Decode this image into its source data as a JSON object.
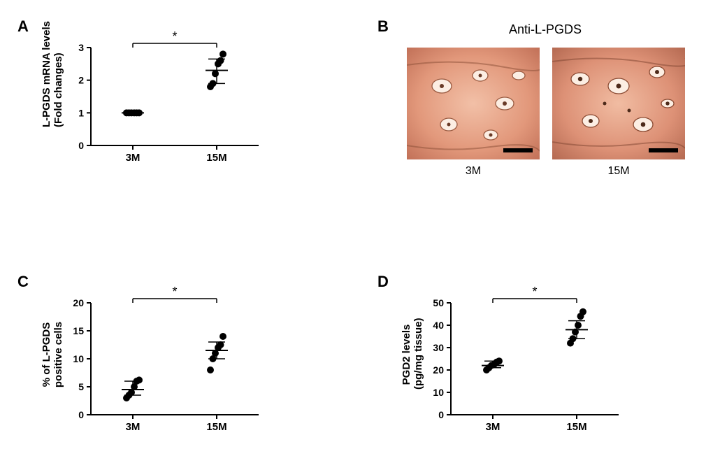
{
  "panels": {
    "A": {
      "label": "A",
      "type": "scatter",
      "ylabel_line1": "L-PGDS mRNA levels",
      "ylabel_line2": "(Fold changes)",
      "categories": [
        "3M",
        "15M"
      ],
      "ylim": [
        0,
        3
      ],
      "ytick_step": 1,
      "yticks": [
        0,
        1,
        2,
        3
      ],
      "sig_marker": "*",
      "sig_bracket": true,
      "marker_color": "#000000",
      "marker_size": 5,
      "axis_color": "#000000",
      "background_color": "#ffffff",
      "label_fontsize": 15,
      "series": {
        "3M": {
          "values": [
            1.0,
            1.0,
            1.0,
            1.0,
            1.0,
            1.0
          ],
          "median": 1.0,
          "q1": 1.0,
          "q3": 1.0
        },
        "15M": {
          "values": [
            1.8,
            1.9,
            2.2,
            2.5,
            2.6,
            2.8
          ],
          "median": 2.3,
          "q1": 1.9,
          "q3": 2.65
        }
      }
    },
    "B": {
      "label": "B",
      "type": "histology-image-pair",
      "title": "Anti-L-PGDS",
      "categories": [
        "3M",
        "15M"
      ],
      "image_bg_color": "#e7a68c",
      "scalebar_color": "#000000",
      "title_fontsize": 18
    },
    "C": {
      "label": "C",
      "type": "scatter",
      "ylabel_line1": "% of L-PGDS",
      "ylabel_line2": "positive cells",
      "categories": [
        "3M",
        "15M"
      ],
      "ylim": [
        0,
        20
      ],
      "ytick_step": 5,
      "yticks": [
        0,
        5,
        10,
        15,
        20
      ],
      "sig_marker": "*",
      "sig_bracket": true,
      "marker_color": "#000000",
      "marker_size": 5,
      "axis_color": "#000000",
      "background_color": "#ffffff",
      "label_fontsize": 15,
      "series": {
        "3M": {
          "values": [
            3.0,
            3.5,
            4.0,
            5.0,
            6.0,
            6.2
          ],
          "median": 4.5,
          "q1": 3.5,
          "q3": 6.0
        },
        "15M": {
          "values": [
            8.0,
            10.0,
            11.0,
            12.0,
            12.5,
            14.0
          ],
          "median": 11.5,
          "q1": 10.0,
          "q3": 13.0
        }
      }
    },
    "D": {
      "label": "D",
      "type": "scatter",
      "ylabel_line1": "PGD2 levels",
      "ylabel_line2": "(pg/mg tissue)",
      "categories": [
        "3M",
        "15M"
      ],
      "ylim": [
        0,
        50
      ],
      "ytick_step": 10,
      "yticks": [
        0,
        10,
        20,
        30,
        40,
        50
      ],
      "sig_marker": "*",
      "sig_bracket": true,
      "marker_color": "#000000",
      "marker_size": 5,
      "axis_color": "#000000",
      "background_color": "#ffffff",
      "label_fontsize": 15,
      "series": {
        "3M": {
          "values": [
            20,
            21,
            22,
            22.5,
            23.5,
            24
          ],
          "median": 22,
          "q1": 21,
          "q3": 24
        },
        "15M": {
          "values": [
            32,
            34,
            37,
            40,
            44,
            46
          ],
          "median": 38,
          "q1": 34,
          "q3": 42
        }
      }
    }
  }
}
